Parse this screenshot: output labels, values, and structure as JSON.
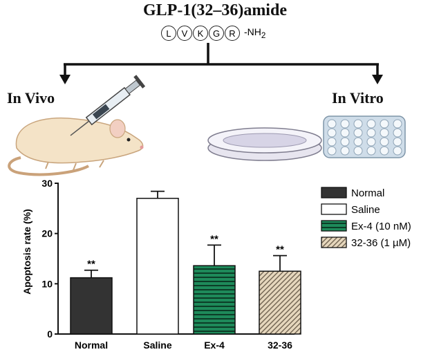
{
  "header": {
    "title": "GLP-1(32–36)amide",
    "residues": [
      "L",
      "V",
      "K",
      "G",
      "R"
    ],
    "c_terminus": "-NH",
    "c_terminus_sub": "2"
  },
  "branches": {
    "left_label": "In Vivo",
    "right_label": "In Vitro"
  },
  "colors": {
    "normal_bar": "#333333",
    "saline_bar": "#ffffff",
    "ex4_bar": "#1e8a5a",
    "ex4_stripe": "#0c3d27",
    "peptide_bar": "#e6d7bd",
    "peptide_hatch": "#6f6250"
  },
  "chart_data": {
    "type": "bar",
    "ylabel": "Apoptosis rate (%)",
    "xlabel": "",
    "ylim": [
      0,
      30
    ],
    "yticks": [
      0,
      10,
      20,
      30
    ],
    "categories": [
      "Normal",
      "Saline",
      "Ex-4",
      "32-36"
    ],
    "values": [
      11.2,
      27.0,
      13.6,
      12.5
    ],
    "errors": [
      1.5,
      1.4,
      4.1,
      3.1
    ],
    "significance": [
      "**",
      "",
      "**",
      "**"
    ],
    "legend": [
      "Normal",
      "Saline",
      "Ex-4 (10 nM)",
      "32-36 (1 µM)"
    ],
    "legend_position": "top-right",
    "grid": false
  }
}
